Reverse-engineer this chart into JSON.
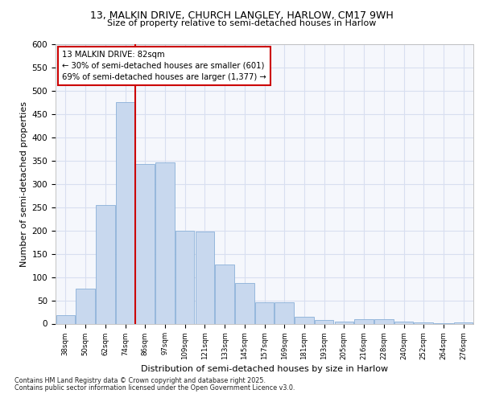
{
  "title_line1": "13, MALKIN DRIVE, CHURCH LANGLEY, HARLOW, CM17 9WH",
  "title_line2": "Size of property relative to semi-detached houses in Harlow",
  "xlabel": "Distribution of semi-detached houses by size in Harlow",
  "ylabel": "Number of semi-detached properties",
  "categories": [
    "38sqm",
    "50sqm",
    "62sqm",
    "74sqm",
    "86sqm",
    "97sqm",
    "109sqm",
    "121sqm",
    "133sqm",
    "145sqm",
    "157sqm",
    "169sqm",
    "181sqm",
    "193sqm",
    "205sqm",
    "216sqm",
    "228sqm",
    "240sqm",
    "252sqm",
    "264sqm",
    "276sqm"
  ],
  "values": [
    18,
    75,
    255,
    475,
    342,
    347,
    199,
    197,
    127,
    88,
    46,
    46,
    15,
    8,
    5,
    10,
    9,
    5,
    2,
    1,
    2
  ],
  "bar_color": "#c8d8ee",
  "bar_edge_color": "#8ab0d8",
  "vline_x": 4.0,
  "vline_color": "#cc0000",
  "annotation_title": "13 MALKIN DRIVE: 82sqm",
  "annotation_line1": "← 30% of semi-detached houses are smaller (601)",
  "annotation_line2": "69% of semi-detached houses are larger (1,377) →",
  "annotation_box_edge_color": "#cc0000",
  "ylim": [
    0,
    600
  ],
  "yticks": [
    0,
    50,
    100,
    150,
    200,
    250,
    300,
    350,
    400,
    450,
    500,
    550,
    600
  ],
  "footnote_line1": "Contains HM Land Registry data © Crown copyright and database right 2025.",
  "footnote_line2": "Contains public sector information licensed under the Open Government Licence v3.0.",
  "fig_bg_color": "#ffffff",
  "plot_bg_color": "#f5f7fc",
  "grid_color": "#d8dff0"
}
